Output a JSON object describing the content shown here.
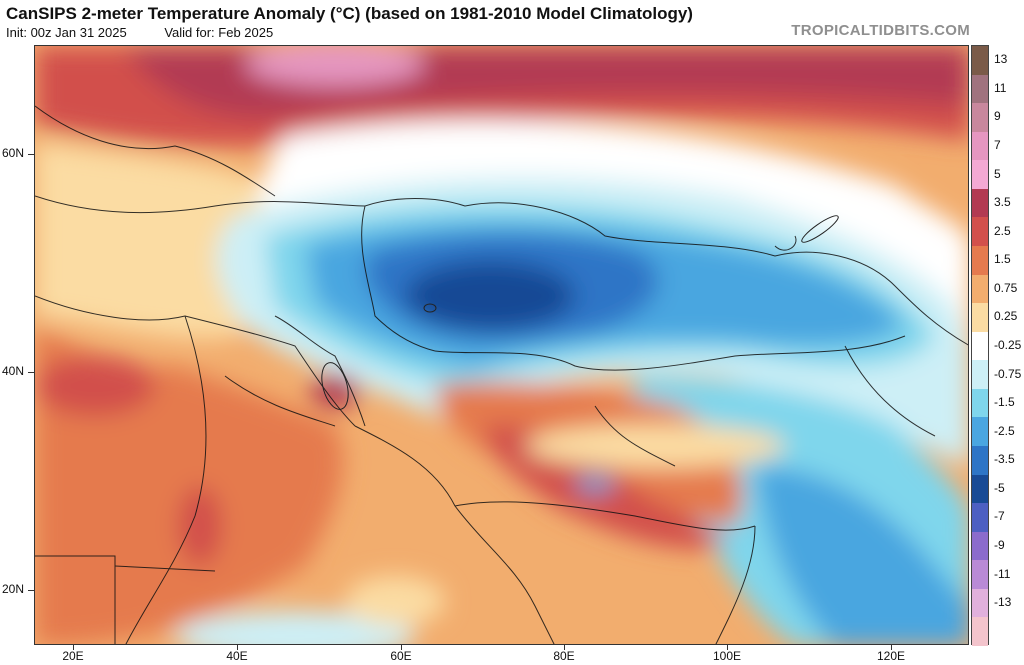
{
  "header": {
    "title": "CanSIPS 2-meter Temperature Anomaly (°C) (based on 1981-2010 Model Climatology)",
    "init": "Init: 00z Jan 31 2025",
    "valid": "Valid for: Feb 2025",
    "brand": "TROPICALTIDBITS.COM"
  },
  "axes": {
    "lat_labels": [
      "60N",
      "40N",
      "20N"
    ],
    "lon_labels": [
      "20E",
      "40E",
      "60E",
      "80E",
      "100E",
      "120E"
    ]
  },
  "colorbar": {
    "labels": [
      "13",
      "11",
      "9",
      "7",
      "5",
      "3.5",
      "2.5",
      "1.5",
      "0.75",
      "0.25",
      "-0.25",
      "-0.75",
      "-1.5",
      "-2.5",
      "-3.5",
      "-5",
      "-7",
      "-9",
      "-11",
      "-13"
    ],
    "colors": [
      "#7a5a48",
      "#a0727e",
      "#c8879d",
      "#e596c0",
      "#f3a9d3",
      "#b23a52",
      "#d2504c",
      "#e57a4e",
      "#f2ad6e",
      "#fbdca3",
      "#ffffff",
      "#cdeff6",
      "#7fd6ec",
      "#4aa6e0",
      "#2e75c6",
      "#184a95",
      "#4d5fc2",
      "#8b6bcc",
      "#b98ad6",
      "#e0b0dc",
      "#f3c4cc"
    ]
  },
  "palette": {
    "deep_red": "#b23a52",
    "red": "#d2504c",
    "orange": "#e57a4e",
    "light_orange": "#f2ad6e",
    "pale": "#fbdca3",
    "white": "#ffffff",
    "light_cyan": "#cdeff6",
    "cyan": "#7fd6ec",
    "blue": "#4aa6e0",
    "mid_blue": "#2e75c6",
    "dark_blue": "#184a95",
    "pink": "#e596c0"
  }
}
